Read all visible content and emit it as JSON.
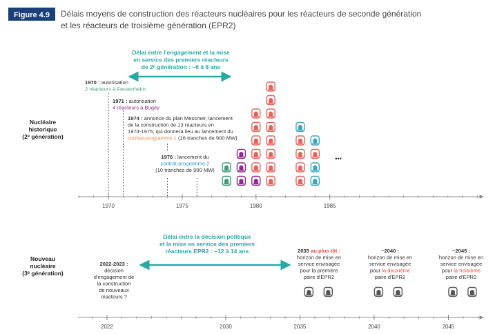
{
  "figure": {
    "label": "Figure 4.9",
    "title": [
      "Délais moyens de construction des réacteurs nucléaires pour les réacteurs de seconde génération",
      "et les réacteurs de troisième génération (EPR2)"
    ]
  },
  "historic": {
    "label": [
      "Nucléaire",
      "historique",
      "(2ᵉ génération)"
    ],
    "heading": [
      "Délai entre l'engagement et la mise",
      "en service des premiers réacteurs",
      "de 2ᵉ génération : ~6 à 8 ans"
    ],
    "xlim": [
      1967.94,
      1995.4
    ],
    "xticks": [
      1970,
      1975,
      1980,
      1985
    ],
    "minor_ticks": [
      1968,
      1969,
      1970,
      1971,
      1972,
      1973,
      1974,
      1975,
      1976,
      1977,
      1978,
      1979,
      1980,
      1981,
      1982,
      1983,
      1984,
      1985,
      1986,
      1987,
      1988,
      1989,
      1990,
      1991,
      1992,
      1993,
      1994,
      1995
    ],
    "annotations": [
      {
        "year": 1970,
        "lines": [
          [
            {
              "t": "1970 :",
              "b": true
            },
            {
              "t": " autorisation"
            }
          ],
          [
            {
              "t": "2 réacteurs à Fessenheim",
              "c": "#4e9b87"
            }
          ]
        ]
      },
      {
        "year": 1971,
        "lines": [
          [
            {
              "t": "1971 :",
              "b": true
            },
            {
              "t": " autorisation"
            }
          ],
          [
            {
              "t": "4 réacteurs à Bugey",
              "c": "#8a2b8c"
            }
          ]
        ]
      },
      {
        "year": 1974,
        "lines": [
          [
            {
              "t": "1974 :",
              "b": true
            },
            {
              "t": " annonce du plan Messmer, lancement"
            }
          ],
          [
            {
              "t": "de la construction de 13 réacteurs en"
            }
          ],
          [
            {
              "t": "1974-1975, qui donnera lieu au lancement du"
            }
          ],
          [
            {
              "t": "contrat-programme 1",
              "c": "#e8894a"
            },
            {
              "t": " (16 tranches de 900 MW)"
            }
          ]
        ]
      },
      {
        "year": 1976,
        "lines": [
          [
            {
              "t": "1976 :",
              "b": true
            },
            {
              "t": " lancement du"
            }
          ],
          [
            {
              "t": "contrat-programme 2",
              "c": "#2e9ccf"
            }
          ],
          [
            {
              "t": "(10 tranches de 900 MW)"
            }
          ]
        ]
      }
    ],
    "reactors": [
      {
        "year": 1978,
        "colors": [
          "#3f9a7c",
          "#3f9a7c"
        ]
      },
      {
        "year": 1979,
        "colors": [
          "#8e2a90",
          "#8e2a90",
          "#8e2a90"
        ]
      },
      {
        "year": 1980,
        "colors": [
          "#8e2a90",
          "#e8625c",
          "#e8625c",
          "#e8625c",
          "#e8625c",
          "#e8625c"
        ]
      },
      {
        "year": 1981,
        "colors": [
          "#e8625c",
          "#e8625c",
          "#e8625c",
          "#e8625c",
          "#e8625c",
          "#e8625c",
          "#e8625c",
          "#e8625c"
        ]
      },
      {
        "year": 1983,
        "colors": [
          "#e8625c",
          "#e8625c",
          "#e8625c",
          "#e8625c",
          "#3aa6c4"
        ]
      },
      {
        "year": 1984,
        "colors": [
          "#3aa6c4",
          "#3aa6c4",
          "#e8625c",
          "#3aa6c4"
        ]
      }
    ],
    "ellipsis": "•••"
  },
  "new": {
    "label": [
      "Nouveau",
      "nucléaire",
      "(3ᵉ génération)"
    ],
    "heading": [
      "Délai entre la décision politique",
      "et la mise en service des premiers",
      "réacteurs EPR2 : ~12 à 14 ans"
    ],
    "xlim": [
      2020.05,
      2047.35
    ],
    "xticks": [
      2022,
      2030,
      2035,
      2040,
      2045
    ],
    "minor_ticks": [
      2021,
      2022,
      2023,
      2024,
      2025,
      2026,
      2027,
      2028,
      2029,
      2030,
      2031,
      2032,
      2033,
      2034,
      2035,
      2036,
      2037,
      2038,
      2039,
      2040,
      2041,
      2042,
      2043,
      2044,
      2045,
      2046,
      2047
    ],
    "annotations": [
      {
        "lines": [
          [
            {
              "t": "2022-2023 :",
              "b": true
            }
          ],
          [
            {
              "t": "décision"
            }
          ],
          [
            {
              "t": "d'engagement de"
            }
          ],
          [
            {
              "t": "la construction"
            }
          ],
          [
            {
              "t": "de nouveaux"
            }
          ],
          [
            {
              "t": "réacteurs ?"
            }
          ]
        ]
      },
      {
        "lines": [
          [
            {
              "t": "2035 ",
              "b": true
            },
            {
              "t": "au plus tôt :",
              "b": true,
              "c": "#e5483f"
            }
          ],
          [
            {
              "t": "horizon de mise en"
            }
          ],
          [
            {
              "t": "service envisagée"
            }
          ],
          [
            {
              "t": "pour la première"
            }
          ],
          [
            {
              "t": "paire d'EPR2"
            }
          ]
        ]
      },
      {
        "lines": [
          [
            {
              "t": "~2040 :",
              "b": true
            }
          ],
          [
            {
              "t": "horizon de mise en"
            }
          ],
          [
            {
              "t": "service envisagée"
            }
          ],
          [
            {
              "t": "pour "
            },
            {
              "t": "la deuxième",
              "c": "#e5483f"
            }
          ],
          [
            {
              "t": "paire d'EPR2"
            }
          ]
        ]
      },
      {
        "lines": [
          [
            {
              "t": "~2045 :",
              "b": true
            }
          ],
          [
            {
              "t": "horizon de mise en"
            }
          ],
          [
            {
              "t": "service envisagée"
            }
          ],
          [
            {
              "t": "pour "
            },
            {
              "t": "la troisième",
              "c": "#e5483f"
            }
          ],
          [
            {
              "t": "paire d'EPR2"
            }
          ]
        ]
      }
    ],
    "reactors": [
      {
        "year": 2035.6,
        "colors": [
          "#555555"
        ]
      },
      {
        "year": 2036.9,
        "colors": [
          "#555555"
        ]
      },
      {
        "year": 2040.3,
        "colors": [
          "#555555"
        ]
      },
      {
        "year": 2041.6,
        "colors": [
          "#555555"
        ]
      },
      {
        "year": 2045.3,
        "colors": [
          "#555555"
        ]
      },
      {
        "year": 2046.6,
        "colors": [
          "#555555"
        ]
      }
    ]
  }
}
